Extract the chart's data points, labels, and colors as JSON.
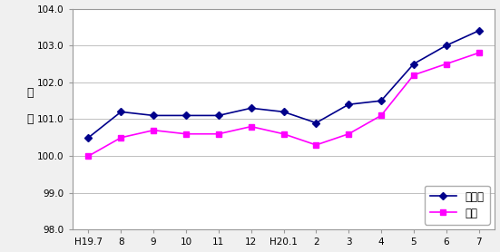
{
  "x_labels": [
    "H19.7",
    "8",
    "9",
    "10",
    "11",
    "12",
    "H20.1",
    "2",
    "3",
    "4",
    "5",
    "6",
    "7"
  ],
  "mie_values": [
    100.5,
    101.2,
    101.1,
    101.1,
    101.1,
    101.3,
    101.2,
    100.9,
    101.4,
    101.5,
    102.5,
    103.0,
    103.4
  ],
  "tsu_values": [
    100.0,
    100.5,
    100.7,
    100.6,
    100.6,
    100.8,
    100.6,
    100.3,
    100.6,
    101.1,
    102.2,
    102.5,
    102.8
  ],
  "mie_color": "#00008B",
  "tsu_color": "#FF00FF",
  "ylim": [
    98.0,
    104.0
  ],
  "yticks": [
    98.0,
    99.0,
    100.0,
    101.0,
    102.0,
    103.0,
    104.0
  ],
  "ylabel_line1": "指",
  "ylabel_line2": "数",
  "legend_mie": "三重県",
  "legend_tsu": "津市",
  "bg_color": "#f0f0f0",
  "plot_bg_color": "#ffffff",
  "grid_color": "#c0c0c0"
}
